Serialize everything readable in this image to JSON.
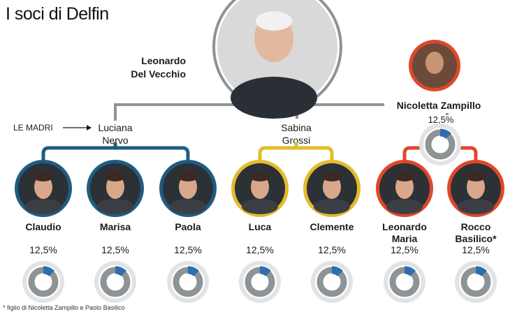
{
  "title": "I soci di Delfin",
  "founder": {
    "name_line1": "Leonardo",
    "name_line2": "Del Vecchio"
  },
  "spouse": {
    "name": "Nicoletta Zampillo",
    "share_label": "12,5%",
    "share": 12.5
  },
  "mothers_label": "LE MADRI",
  "mothers": [
    {
      "line1": "Luciana",
      "line2": "Nervo",
      "color": "#1f5c82"
    },
    {
      "line1": "Sabina",
      "line2": "Grossi",
      "color": "#e3bb2c"
    },
    {
      "line1": "",
      "line2": "",
      "color": "#e0472a"
    }
  ],
  "children": [
    {
      "name_line1": "Claudio",
      "name_line2": "",
      "share_label": "12,5%",
      "share": 12.5,
      "group": 0
    },
    {
      "name_line1": "Marisa",
      "name_line2": "",
      "share_label": "12,5%",
      "share": 12.5,
      "group": 0
    },
    {
      "name_line1": "Paola",
      "name_line2": "",
      "share_label": "12,5%",
      "share": 12.5,
      "group": 0
    },
    {
      "name_line1": "Luca",
      "name_line2": "",
      "share_label": "12,5%",
      "share": 12.5,
      "group": 1
    },
    {
      "name_line1": "Clemente",
      "name_line2": "",
      "share_label": "12,5%",
      "share": 12.5,
      "group": 1
    },
    {
      "name_line1": "Leonardo",
      "name_line2": "Maria",
      "share_label": "12,5%",
      "share": 12.5,
      "group": 2
    },
    {
      "name_line1": "Rocco",
      "name_line2": "Basilico*",
      "share_label": "12,5%",
      "share": 12.5,
      "group": 2
    }
  ],
  "footnote": "* figlio di Nicoletta Zampillo e Paolo Basilico",
  "colors": {
    "trunk": "#8e9396",
    "donut_track": "#8e9396",
    "donut_share": "#2f6db0",
    "donut_ring": "#e1e3e5",
    "photo_bg": "#2c3136"
  }
}
